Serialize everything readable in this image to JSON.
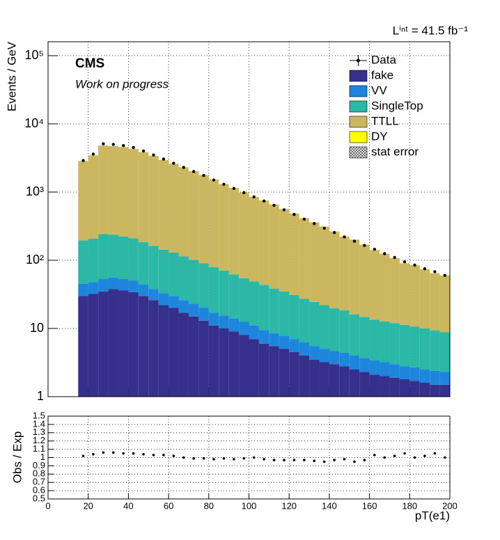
{
  "chart_data": {
    "type": "histogram",
    "stacked": true,
    "log_y": true,
    "grid": true,
    "legend": "upper right",
    "y_label": "Events / GeV",
    "x_label": "pT(e1)",
    "annotations": [
      "CMS",
      "Work on progress"
    ],
    "lumi": "Lⁱⁿᵗ = 41.5 fb⁻¹",
    "bins": [
      15,
      20,
      25,
      30,
      35,
      40,
      45,
      50,
      55,
      60,
      65,
      70,
      75,
      80,
      85,
      90,
      95,
      100,
      105,
      110,
      115,
      120,
      125,
      130,
      135,
      140,
      145,
      150,
      155,
      160,
      165,
      170,
      175,
      180,
      185,
      190,
      195,
      200
    ],
    "xlim": [
      0,
      200
    ],
    "xticks": [
      0,
      20,
      40,
      60,
      80,
      100,
      120,
      140,
      160,
      180,
      200
    ],
    "ylim": [
      1,
      160000
    ],
    "yticks": [
      1,
      10,
      {
        "value": 100,
        "label": "10²"
      },
      {
        "value": 1000,
        "label": "10³"
      },
      {
        "value": 10000,
        "label": "10⁴"
      },
      {
        "value": 100000,
        "label": "10⁵"
      }
    ],
    "series": [
      {
        "name": "fake",
        "color": "#35308c",
        "values": [
          30,
          32,
          35,
          38,
          36,
          34,
          30,
          26,
          22,
          20,
          17,
          15,
          13,
          11,
          10,
          9,
          8,
          7,
          6,
          5.5,
          5,
          4.5,
          4,
          3.5,
          3.2,
          3,
          2.8,
          2.5,
          2.3,
          2.1,
          2,
          1.9,
          1.8,
          1.7,
          1.6,
          1.5,
          1.5
        ]
      },
      {
        "name": "VV",
        "color": "#1d86dc",
        "values": [
          15,
          16,
          18,
          18,
          17,
          16,
          14,
          12,
          11,
          10,
          9,
          8,
          7,
          6,
          5.5,
          5,
          4.5,
          4,
          3.5,
          3,
          2.8,
          2.5,
          2.3,
          2,
          1.8,
          1.7,
          1.6,
          1.5,
          1.4,
          1.3,
          1.2,
          1.1,
          1,
          1,
          0.9,
          0.9,
          0.8
        ]
      },
      {
        "name": "SingleTop",
        "color": "#2bb8a6",
        "values": [
          150,
          160,
          190,
          180,
          170,
          160,
          140,
          125,
          110,
          100,
          88,
          78,
          70,
          62,
          55,
          48,
          42,
          38,
          34,
          30,
          27,
          24,
          21,
          19,
          17,
          15,
          14,
          12,
          11,
          10,
          9.5,
          9,
          8.5,
          8,
          7.5,
          7,
          6.5
        ]
      },
      {
        "name": "TTLL",
        "color": "#cbb75f",
        "values": [
          2650,
          3250,
          4570,
          4480,
          4350,
          4080,
          3660,
          3240,
          2820,
          2470,
          2190,
          1920,
          1680,
          1450,
          1240,
          1090,
          935,
          800,
          710,
          620,
          530,
          455,
          385,
          335,
          290,
          245,
          205,
          185,
          155,
          128,
          112,
          96,
          79,
          74,
          64,
          55,
          51
        ]
      },
      {
        "name": "DY",
        "color": "#ffff00",
        "values": [
          0,
          0,
          0,
          0,
          0,
          0,
          0,
          0,
          0,
          0,
          0,
          0,
          0,
          0,
          0,
          0,
          0,
          0,
          0,
          0,
          0,
          0,
          0,
          0,
          0,
          0,
          0,
          0,
          0,
          0,
          0,
          0,
          0,
          0,
          0,
          0,
          0
        ]
      }
    ],
    "data": {
      "name": "Data",
      "color": "#000000",
      "values": [
        2900,
        3600,
        5100,
        5000,
        4800,
        4500,
        4000,
        3500,
        3050,
        2650,
        2300,
        2000,
        1750,
        1500,
        1300,
        1130,
        980,
        850,
        740,
        640,
        550,
        470,
        400,
        345,
        295,
        255,
        220,
        190,
        165,
        145,
        125,
        110,
        95,
        85,
        75,
        68,
        60
      ]
    },
    "legend_extra": [
      "stat error"
    ],
    "ratio": {
      "y_label": "Obs / Exp",
      "ylim": [
        0.5,
        1.5
      ],
      "yticks": [
        0.5,
        0.6,
        0.7,
        0.8,
        0.9,
        1,
        1.1,
        1.2,
        1.3,
        1.4,
        1.5
      ],
      "values": [
        1.02,
        1.04,
        1.06,
        1.06,
        1.05,
        1.05,
        1.04,
        1.03,
        1.03,
        1.02,
        1.0,
        0.99,
        0.99,
        0.98,
        0.99,
        0.98,
        0.99,
        1.0,
        0.98,
        0.97,
        0.97,
        0.97,
        0.97,
        0.96,
        0.95,
        0.97,
        0.98,
        0.95,
        0.97,
        1.03,
        1.0,
        1.02,
        1.05,
        1.0,
        1.02,
        1.05,
        1.0
      ]
    }
  }
}
